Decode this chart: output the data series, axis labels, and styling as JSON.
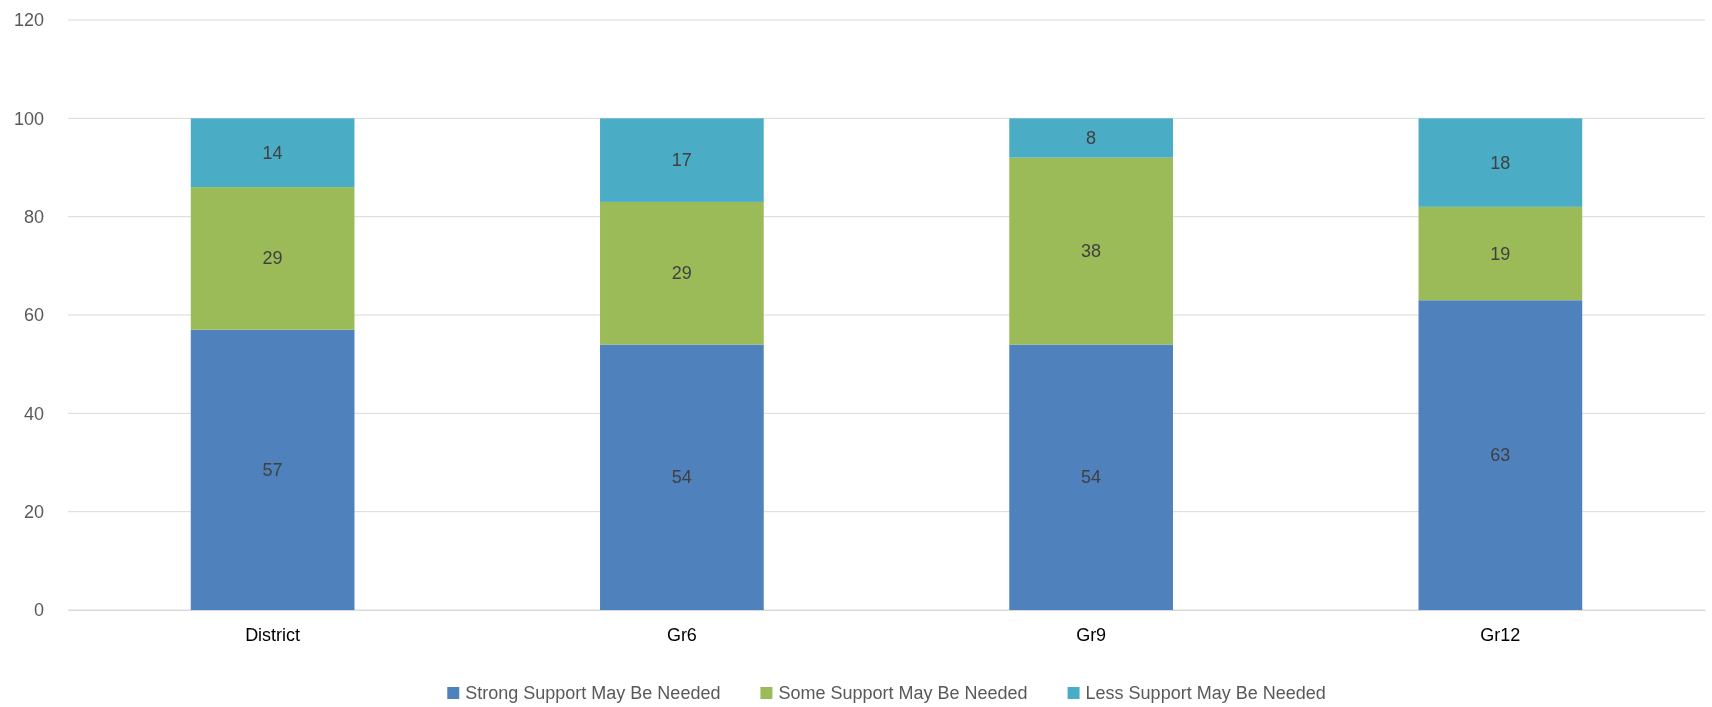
{
  "chart_data": {
    "type": "bar",
    "stacked": true,
    "categories": [
      "District",
      "Gr6",
      "Gr9",
      "Gr12"
    ],
    "series": [
      {
        "name": "Strong Support May Be Needed",
        "color": "#4f81bd",
        "values": [
          57,
          54,
          54,
          63
        ]
      },
      {
        "name": "Some Support May Be Needed",
        "color": "#9bbb59",
        "values": [
          29,
          29,
          38,
          19
        ]
      },
      {
        "name": "Less Support May Be Needed",
        "color": "#4bacc6",
        "values": [
          14,
          17,
          8,
          18
        ]
      }
    ],
    "ylim": [
      0,
      120
    ],
    "yticks": [
      0,
      20,
      40,
      60,
      80,
      100,
      120
    ],
    "grid": "y",
    "legend": "bottom",
    "data_labels": true
  }
}
